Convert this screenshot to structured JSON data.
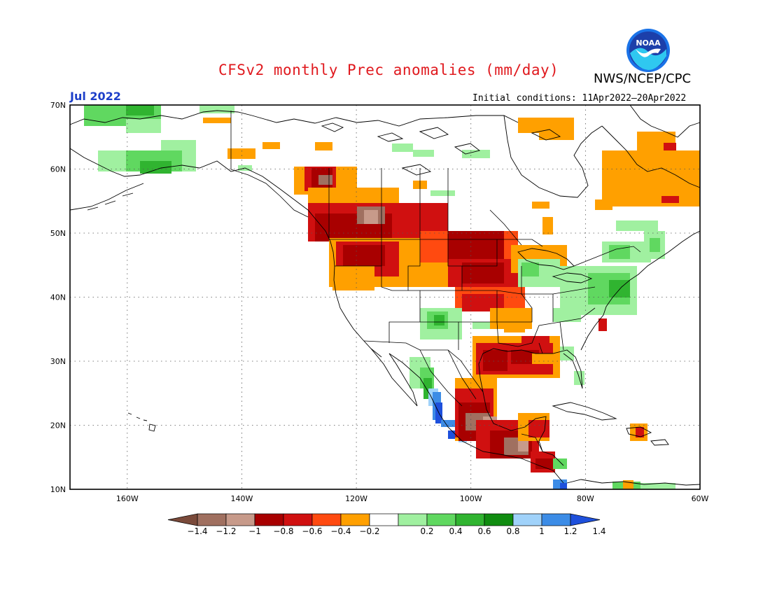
{
  "title": "CFSv2 monthly Prec anomalies (mm/day)",
  "valid_month": "Jul 2022",
  "agency": "NWS/NCEP/CPC",
  "initial_conditions": "Initial conditions: 11Apr2022–20Apr2022",
  "logo": {
    "icon": "noaa-logo",
    "text": "NOAA"
  },
  "map": {
    "projection": "lat-lon",
    "lon_range": [
      -170,
      -60
    ],
    "lat_range": [
      10,
      70
    ],
    "gridlines": "dotted",
    "lat_labels": [
      "70N",
      "60N",
      "50N",
      "40N",
      "30N",
      "20N",
      "10N"
    ],
    "lon_labels": [
      "160W",
      "140W",
      "120W",
      "100W",
      "80W",
      "60W"
    ]
  },
  "legend": {
    "labels": [
      "−1.4",
      "−1.2",
      "−1",
      "−0.8",
      "−0.6",
      "−0.4",
      "−0.2",
      "0.2",
      "0.4",
      "0.6",
      "0.8",
      "1",
      "1.2",
      "1.4"
    ],
    "colors": [
      "#7a4a3a",
      "#a07060",
      "#c79a8a",
      "#a80000",
      "#d01010",
      "#ff4a10",
      "#ffa000",
      "#ffffff",
      "#a0f0a0",
      "#60d860",
      "#30b430",
      "#108c10",
      "#a0d2fa",
      "#3c8ce6",
      "#1e50dc"
    ]
  },
  "colors": {
    "dry_extreme": "#7a4a3a",
    "wet_extreme": "#1e50dc",
    "neutral": "#ffffff"
  }
}
